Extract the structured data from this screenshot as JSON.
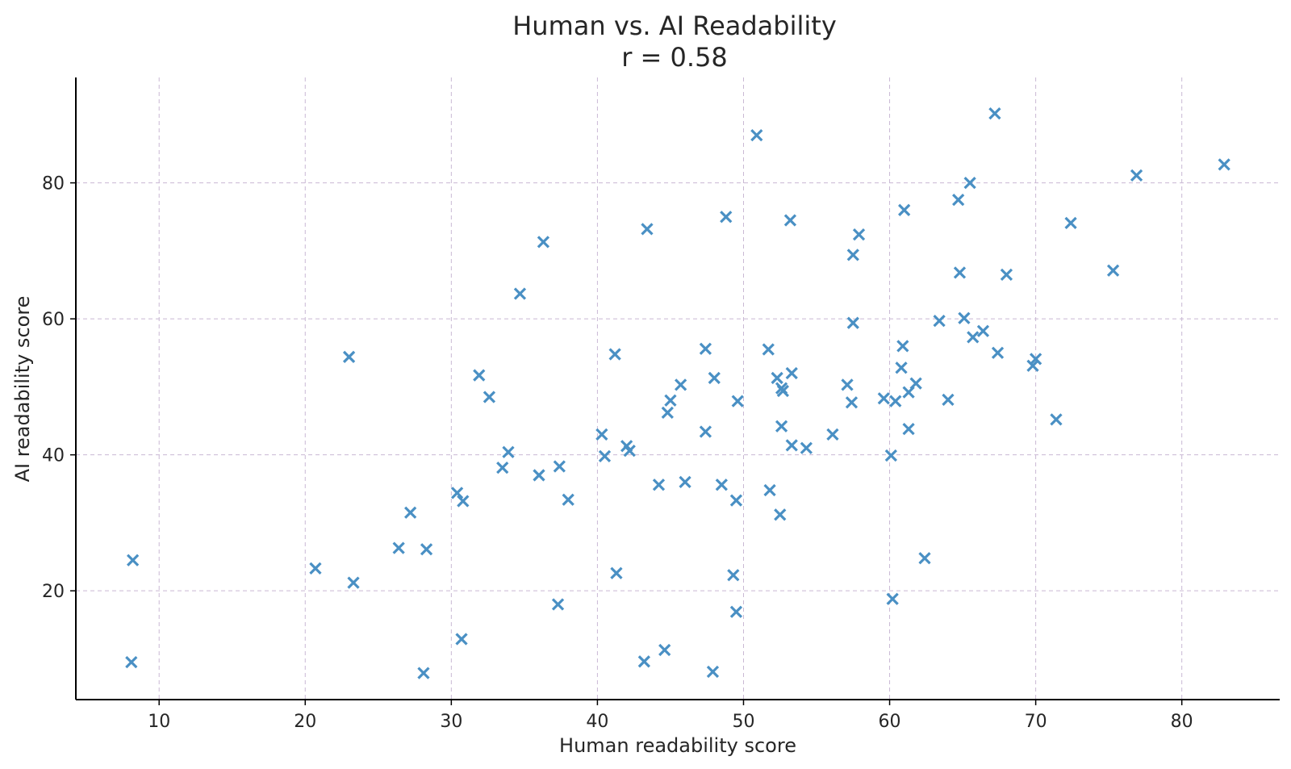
{
  "chart_data": {
    "type": "scatter",
    "title": "Human vs. AI Readability",
    "subtitle": "r = 0.58",
    "xlabel": "Human readability score",
    "ylabel": "AI readability score",
    "xlim": [
      4.3,
      86.7
    ],
    "ylim": [
      4.0,
      95.5
    ],
    "xticks": [
      10,
      20,
      30,
      40,
      50,
      60,
      70,
      80
    ],
    "yticks": [
      20,
      40,
      60,
      80
    ],
    "xtick_labels": [
      "10",
      "20",
      "30",
      "40",
      "50",
      "60",
      "70",
      "80"
    ],
    "ytick_labels": [
      "20",
      "40",
      "60",
      "80"
    ],
    "grid": true,
    "marker": "x",
    "color": "#4a90c4",
    "points": [
      [
        8.2,
        24.5
      ],
      [
        8.1,
        9.5
      ],
      [
        20.7,
        23.3
      ],
      [
        23.0,
        54.4
      ],
      [
        23.3,
        21.2
      ],
      [
        26.4,
        26.3
      ],
      [
        27.2,
        31.5
      ],
      [
        28.1,
        7.9
      ],
      [
        28.3,
        26.1
      ],
      [
        30.4,
        34.4
      ],
      [
        30.7,
        12.9
      ],
      [
        30.8,
        33.2
      ],
      [
        31.9,
        51.7
      ],
      [
        32.6,
        48.5
      ],
      [
        33.5,
        38.1
      ],
      [
        33.9,
        40.4
      ],
      [
        34.7,
        63.7
      ],
      [
        36.0,
        37.0
      ],
      [
        36.3,
        71.3
      ],
      [
        37.3,
        18.0
      ],
      [
        37.4,
        38.3
      ],
      [
        38.0,
        33.4
      ],
      [
        40.3,
        43.0
      ],
      [
        40.5,
        39.8
      ],
      [
        41.2,
        54.8
      ],
      [
        41.3,
        22.6
      ],
      [
        42.0,
        41.3
      ],
      [
        42.2,
        40.6
      ],
      [
        43.2,
        9.6
      ],
      [
        43.4,
        73.2
      ],
      [
        44.2,
        35.6
      ],
      [
        44.6,
        11.3
      ],
      [
        44.8,
        46.2
      ],
      [
        45.0,
        48.0
      ],
      [
        45.7,
        50.3
      ],
      [
        46.0,
        36.0
      ],
      [
        47.4,
        55.6
      ],
      [
        47.4,
        43.4
      ],
      [
        47.9,
        8.1
      ],
      [
        48.0,
        51.3
      ],
      [
        48.5,
        35.6
      ],
      [
        48.8,
        75.0
      ],
      [
        49.3,
        22.3
      ],
      [
        49.5,
        33.3
      ],
      [
        49.6,
        47.9
      ],
      [
        49.5,
        16.9
      ],
      [
        50.9,
        87.0
      ],
      [
        51.7,
        55.5
      ],
      [
        51.8,
        34.8
      ],
      [
        52.3,
        51.3
      ],
      [
        52.5,
        31.2
      ],
      [
        52.6,
        49.8
      ],
      [
        52.6,
        44.2
      ],
      [
        52.7,
        49.4
      ],
      [
        53.2,
        74.5
      ],
      [
        53.3,
        52.0
      ],
      [
        53.3,
        41.4
      ],
      [
        54.3,
        41.0
      ],
      [
        56.1,
        43.0
      ],
      [
        57.1,
        50.3
      ],
      [
        57.4,
        47.7
      ],
      [
        57.5,
        59.4
      ],
      [
        57.5,
        69.4
      ],
      [
        57.9,
        72.4
      ],
      [
        59.6,
        48.3
      ],
      [
        60.1,
        39.9
      ],
      [
        60.2,
        18.8
      ],
      [
        60.4,
        47.9
      ],
      [
        60.8,
        52.8
      ],
      [
        60.9,
        56.0
      ],
      [
        61.0,
        76.0
      ],
      [
        61.3,
        43.8
      ],
      [
        61.3,
        49.2
      ],
      [
        61.8,
        50.5
      ],
      [
        62.4,
        24.8
      ],
      [
        63.4,
        59.7
      ],
      [
        64.0,
        48.1
      ],
      [
        64.7,
        77.5
      ],
      [
        64.8,
        66.8
      ],
      [
        65.1,
        60.1
      ],
      [
        65.5,
        80.0
      ],
      [
        65.7,
        57.3
      ],
      [
        66.4,
        58.2
      ],
      [
        67.2,
        90.2
      ],
      [
        67.4,
        55.0
      ],
      [
        68.0,
        66.5
      ],
      [
        69.8,
        53.1
      ],
      [
        70.0,
        54.1
      ],
      [
        71.4,
        45.2
      ],
      [
        72.4,
        74.1
      ],
      [
        75.3,
        67.1
      ],
      [
        76.9,
        81.1
      ],
      [
        82.9,
        82.7
      ]
    ]
  }
}
